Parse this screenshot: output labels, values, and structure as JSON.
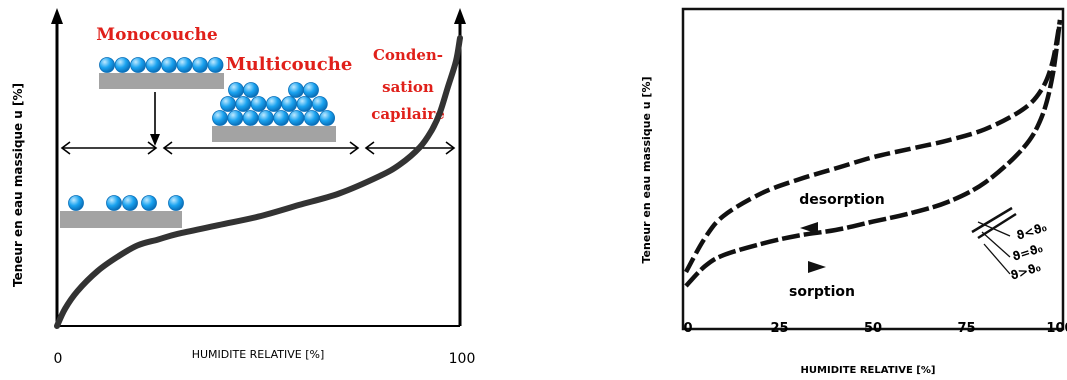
{
  "colors": {
    "axis": "#000000",
    "curve": "#333333",
    "label_red": "#e0201a",
    "sphere": "#1aa3f0",
    "sphere_stroke": "#0b6fb8",
    "substrate": "#a3a3a3",
    "frame": "#111111"
  },
  "chart_data": [
    {
      "type": "line",
      "xlabel": "HUMIDITE RELATIVE [%]",
      "ylabel": "Teneur en eau massique u [%]",
      "x_start_label": "0",
      "x_end_label": "100",
      "xlim": [
        0,
        100
      ],
      "ylim": [
        0,
        100
      ],
      "regions": [
        {
          "name": "Monocouche",
          "x_range": [
            0,
            25
          ]
        },
        {
          "name": "Multicouche",
          "x_range": [
            25,
            75
          ]
        },
        {
          "name": "Condensation capilaire",
          "x_range": [
            75,
            100
          ]
        }
      ],
      "annotations": {
        "monocouche": "Monocouche",
        "multicouche": "Multicouche",
        "condensation_line1": "Conden-",
        "condensation_line2": "sation",
        "condensation_line3": "capilaire"
      },
      "series": [
        {
          "x": [
            0,
            2,
            5,
            10,
            15,
            20,
            25,
            30,
            40,
            50,
            60,
            70,
            80,
            85,
            90,
            93,
            95,
            97,
            99,
            100
          ],
          "y": [
            0,
            6,
            12,
            19,
            24,
            28,
            30,
            32,
            35,
            38,
            42,
            46,
            52,
            56,
            62,
            68,
            74,
            83,
            92,
            100
          ]
        }
      ]
    },
    {
      "type": "line",
      "xlabel": "HUMIDITE RELATIVE [%]",
      "ylabel": "Teneur en eau massique u [%]",
      "xticks": [
        "0",
        "25",
        "50",
        "75",
        "100"
      ],
      "xlim": [
        0,
        100
      ],
      "ylim": [
        0,
        100
      ],
      "series": [
        {
          "name": "desorption",
          "x": [
            0,
            5,
            10,
            20,
            30,
            40,
            50,
            60,
            70,
            80,
            90,
            95,
            98,
            100
          ],
          "y": [
            10,
            22,
            30,
            38,
            43,
            47,
            51,
            54,
            57,
            61,
            68,
            75,
            85,
            100
          ]
        },
        {
          "name": "sorption",
          "x": [
            0,
            5,
            10,
            20,
            30,
            40,
            50,
            60,
            70,
            80,
            90,
            95,
            98,
            100
          ],
          "y": [
            5,
            12,
            16,
            20,
            23,
            25,
            28,
            31,
            35,
            42,
            54,
            65,
            80,
            100
          ]
        }
      ],
      "annotations": {
        "desorption": "desorption",
        "sorption": "sorption",
        "theta1": "ϑ<ϑ₀",
        "theta2": "ϑ=ϑ₀",
        "theta3": "ϑ>ϑ₀"
      }
    }
  ]
}
